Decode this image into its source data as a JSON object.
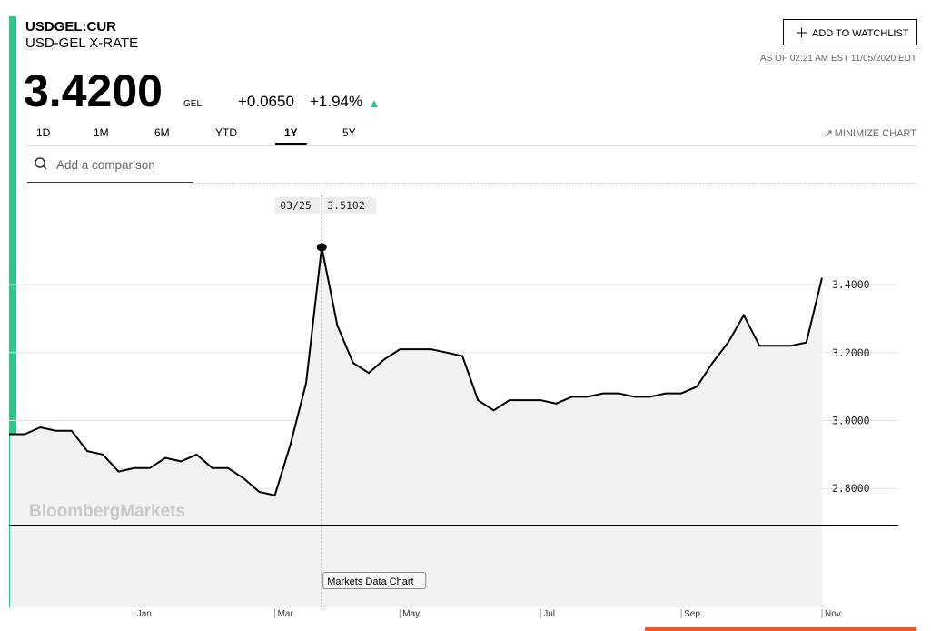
{
  "header": {
    "ticker": "USDGEL:CUR",
    "name": "USD-GEL X-RATE",
    "price": "3.4200",
    "currency": "GEL",
    "change": "+0.0650",
    "change_pct": "+1.94%",
    "watchlist_button": "ADD TO WATCHLIST",
    "as_of": "AS OF 02:21 AM EST 11/05/2020 EDT"
  },
  "tabs": [
    "1D",
    "1M",
    "6M",
    "YTD",
    "1Y",
    "5Y"
  ],
  "active_tab": "1Y",
  "minimize": "MINIMIZE CHART",
  "search_placeholder": "Add a comparison",
  "watermark": "BloombergMarkets",
  "tooltip": "Markets Data Chart",
  "crosshair": {
    "date": "03/25",
    "value": "3.5102"
  },
  "chart_data": {
    "type": "line",
    "categories": [
      null,
      null,
      null,
      null,
      null,
      null,
      null,
      null,
      "Jan",
      null,
      null,
      null,
      null,
      null,
      null,
      null,
      null,
      "Mar",
      null,
      null,
      null,
      null,
      null,
      null,
      null,
      "May",
      null,
      null,
      null,
      null,
      null,
      null,
      null,
      null,
      "Jul",
      null,
      null,
      null,
      null,
      null,
      null,
      null,
      null,
      "Sep",
      null,
      null,
      null,
      null,
      null,
      null,
      null,
      null,
      "Nov"
    ],
    "series": [
      {
        "name": "USDGEL:CUR",
        "color": "#000000",
        "values": [
          2.96,
          2.96,
          2.98,
          2.97,
          2.97,
          2.91,
          2.9,
          2.85,
          2.86,
          2.86,
          2.89,
          2.88,
          2.9,
          2.86,
          2.86,
          2.83,
          2.79,
          2.78,
          2.93,
          3.11,
          3.5102,
          3.28,
          3.17,
          3.14,
          3.18,
          3.21,
          3.21,
          3.21,
          3.2,
          3.19,
          3.06,
          3.03,
          3.06,
          3.06,
          3.06,
          3.05,
          3.07,
          3.07,
          3.08,
          3.08,
          3.07,
          3.07,
          3.08,
          3.08,
          3.1,
          3.17,
          3.23,
          3.31,
          3.22,
          3.22,
          3.22,
          3.23,
          3.42
        ]
      }
    ],
    "ylim": [
      2.45,
      3.7
    ],
    "yticks": [
      {
        "value": 2.8,
        "label": "2.8000"
      },
      {
        "value": 3.0,
        "label": "3.0000"
      },
      {
        "value": 3.2,
        "label": "3.2000"
      },
      {
        "value": 3.4,
        "label": "3.4000"
      }
    ],
    "grid": true
  }
}
